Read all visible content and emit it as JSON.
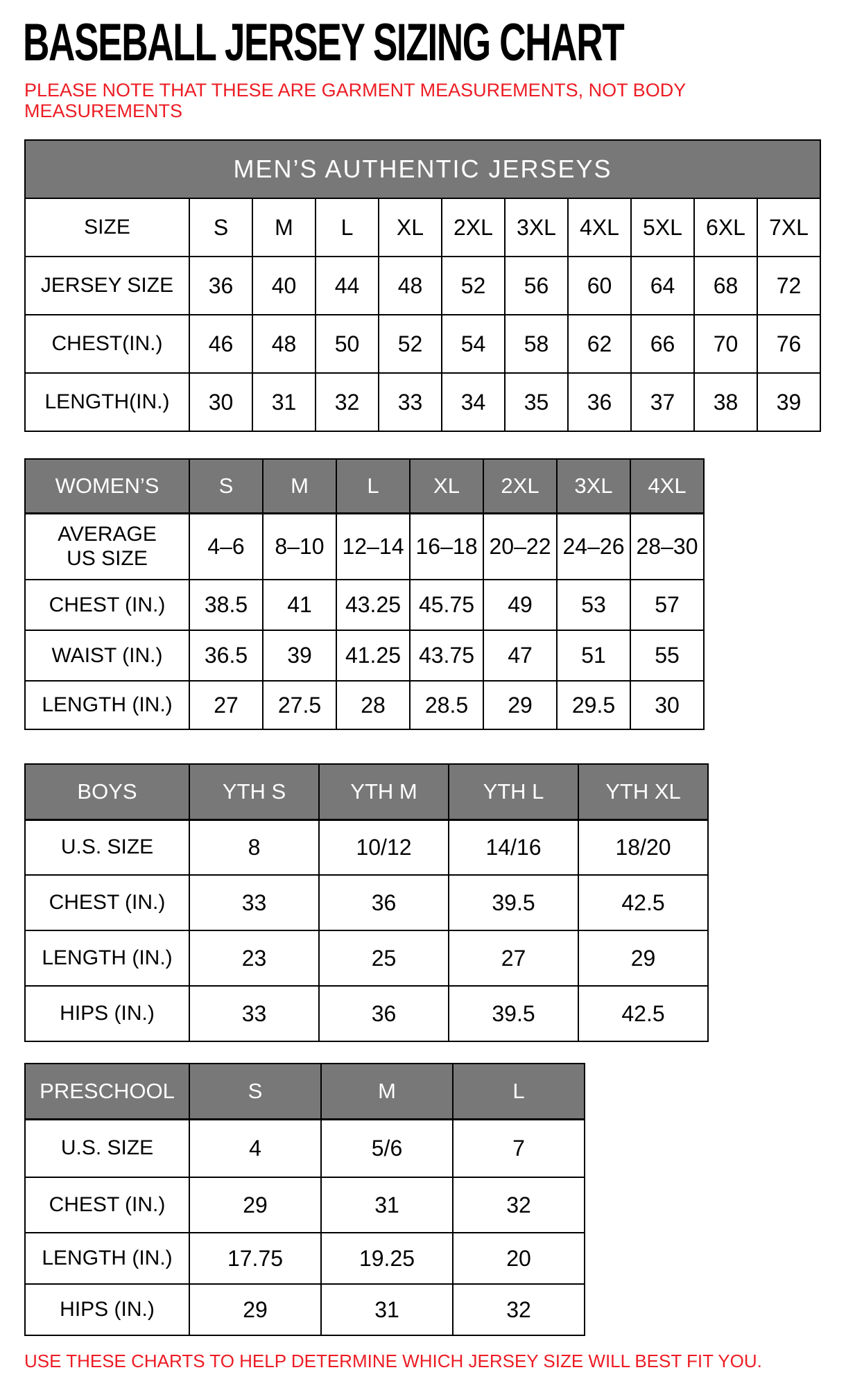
{
  "title": "BASEBALL JERSEY SIZING CHART",
  "note": "PLEASE NOTE THAT THESE ARE GARMENT MEASUREMENTS, NOT BODY MEASUREMENTS",
  "footer": "USE THESE CHARTS TO HELP DETERMINE WHICH JERSEY SIZE WILL BEST FIT YOU.",
  "colors": {
    "red": "#ed1c24",
    "gray": "#787878",
    "ink": "#000000"
  },
  "mens": {
    "banner": "MEN’S AUTHENTIC JERSEYS",
    "size_header": "SIZE",
    "sizes": [
      "S",
      "M",
      "L",
      "XL",
      "2XL",
      "3XL",
      "4XL",
      "5XL",
      "6XL",
      "7XL"
    ],
    "rows": [
      {
        "label": "JERSEY SIZE",
        "values": [
          "36",
          "40",
          "44",
          "48",
          "52",
          "56",
          "60",
          "64",
          "68",
          "72"
        ]
      },
      {
        "label": "CHEST(IN.)",
        "values": [
          "46",
          "48",
          "50",
          "52",
          "54",
          "58",
          "62",
          "66",
          "70",
          "76"
        ]
      },
      {
        "label": "LENGTH(IN.)",
        "values": [
          "30",
          "31",
          "32",
          "33",
          "34",
          "35",
          "36",
          "37",
          "38",
          "39"
        ]
      }
    ]
  },
  "womens": {
    "header": "WOMEN’S",
    "sizes": [
      "S",
      "M",
      "L",
      "XL",
      "2XL",
      "3XL",
      "4XL"
    ],
    "rows": [
      {
        "label": "AVERAGE\nUS SIZE",
        "values": [
          "4–6",
          "8–10",
          "12–14",
          "16–18",
          "20–22",
          "24–26",
          "28–30"
        ]
      },
      {
        "label": "CHEST (IN.)",
        "values": [
          "38.5",
          "41",
          "43.25",
          "45.75",
          "49",
          "53",
          "57"
        ]
      },
      {
        "label": "WAIST (IN.)",
        "values": [
          "36.5",
          "39",
          "41.25",
          "43.75",
          "47",
          "51",
          "55"
        ]
      },
      {
        "label": "LENGTH (IN.)",
        "values": [
          "27",
          "27.5",
          "28",
          "28.5",
          "29",
          "29.5",
          "30"
        ]
      }
    ]
  },
  "boys": {
    "header": "BOYS",
    "sizes": [
      "YTH S",
      "YTH M",
      "YTH L",
      "YTH XL"
    ],
    "rows": [
      {
        "label": "U.S. SIZE",
        "values": [
          "8",
          "10/12",
          "14/16",
          "18/20"
        ]
      },
      {
        "label": "CHEST (IN.)",
        "values": [
          "33",
          "36",
          "39.5",
          "42.5"
        ]
      },
      {
        "label": "LENGTH (IN.)",
        "values": [
          "23",
          "25",
          "27",
          "29"
        ]
      },
      {
        "label": "HIPS (IN.)",
        "values": [
          "33",
          "36",
          "39.5",
          "42.5"
        ]
      }
    ]
  },
  "preschool": {
    "header": "PRESCHOOL",
    "sizes": [
      "S",
      "M",
      "L"
    ],
    "rows": [
      {
        "label": "U.S. SIZE",
        "values": [
          "4",
          "5/6",
          "7"
        ]
      },
      {
        "label": "CHEST (IN.)",
        "values": [
          "29",
          "31",
          "32"
        ]
      },
      {
        "label": "LENGTH (IN.)",
        "values": [
          "17.75",
          "19.25",
          "20"
        ]
      },
      {
        "label": "HIPS (IN.)",
        "values": [
          "29",
          "31",
          "32"
        ]
      }
    ]
  }
}
